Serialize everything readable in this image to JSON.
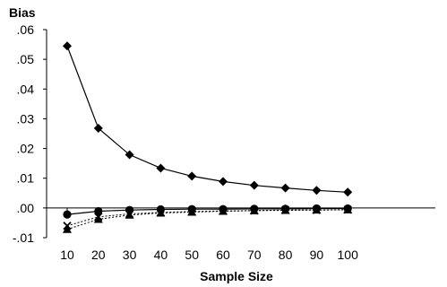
{
  "chart_data": {
    "type": "line",
    "ylabel": "Bias",
    "xlabel": "Sample Size",
    "x": [
      10,
      20,
      30,
      40,
      50,
      60,
      70,
      80,
      90,
      100
    ],
    "ylim": [
      -0.01,
      0.06
    ],
    "yticks": [
      0.06,
      0.05,
      0.04,
      0.03,
      0.02,
      0.01,
      0.0,
      -0.01
    ],
    "ytick_labels": [
      ".06",
      ".05",
      ".04",
      ".03",
      ".02",
      ".01",
      ".00",
      "-.01"
    ],
    "grid": false,
    "legend": "none",
    "series": [
      {
        "marker": "diamond",
        "line_style": "solid",
        "color": "#000000",
        "values": [
          0.0545,
          0.0268,
          0.0179,
          0.0134,
          0.0107,
          0.0089,
          0.0076,
          0.0067,
          0.0059,
          0.0053
        ]
      },
      {
        "marker": "circle",
        "line_style": "solid",
        "color": "#000000",
        "values": [
          -0.0022,
          -0.0011,
          -0.0007,
          -0.0005,
          -0.0004,
          -0.0004,
          -0.0003,
          -0.0003,
          -0.0002,
          -0.0002
        ]
      },
      {
        "marker": "triangle",
        "line_style": "dotted",
        "color": "#000000",
        "values": [
          -0.0072,
          -0.0038,
          -0.0024,
          -0.0017,
          -0.0014,
          -0.0011,
          -0.0009,
          -0.0008,
          -0.0007,
          -0.0006
        ]
      },
      {
        "marker": "x",
        "line_style": "dotted",
        "color": "#000000",
        "values": [
          -0.006,
          -0.003,
          -0.002,
          -0.0015,
          -0.0012,
          -0.001,
          -0.0009,
          -0.0007,
          -0.0007,
          -0.0006
        ]
      }
    ]
  }
}
